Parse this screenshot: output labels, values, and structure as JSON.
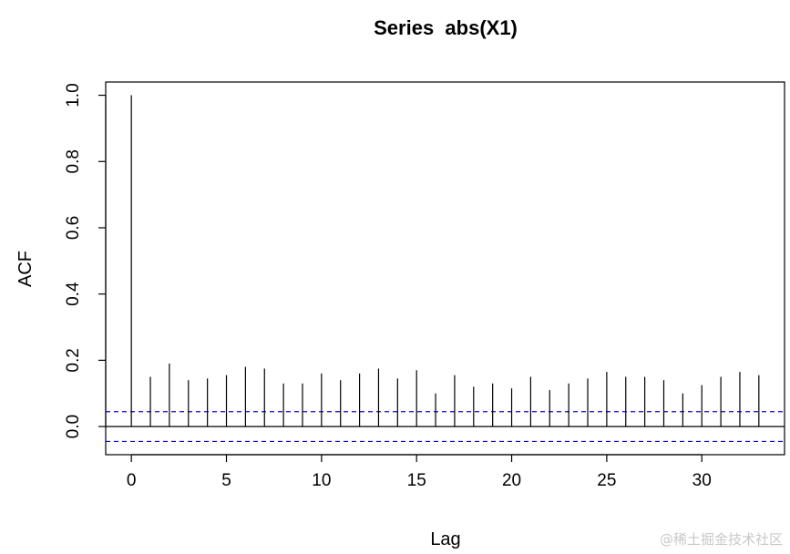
{
  "chart_data": {
    "type": "bar",
    "title": "Series  abs(X1)",
    "xlabel": "Lag",
    "ylabel": "ACF",
    "xlim": [
      -1.35,
      34.35
    ],
    "ylim": [
      -0.085,
      1.04
    ],
    "x_ticks": [
      0,
      5,
      10,
      15,
      20,
      25,
      30
    ],
    "x_tick_labels": [
      "0",
      "5",
      "10",
      "15",
      "20",
      "25",
      "30"
    ],
    "y_ticks": [
      0.0,
      0.2,
      0.4,
      0.6,
      0.8,
      1.0
    ],
    "y_tick_labels": [
      "0.0",
      "0.2",
      "0.4",
      "0.6",
      "0.8",
      "1.0"
    ],
    "lags": [
      0,
      1,
      2,
      3,
      4,
      5,
      6,
      7,
      8,
      9,
      10,
      11,
      12,
      13,
      14,
      15,
      16,
      17,
      18,
      19,
      20,
      21,
      22,
      23,
      24,
      25,
      26,
      27,
      28,
      29,
      30,
      31,
      32,
      33
    ],
    "values": [
      1.0,
      0.15,
      0.19,
      0.14,
      0.145,
      0.155,
      0.18,
      0.175,
      0.13,
      0.13,
      0.16,
      0.14,
      0.16,
      0.175,
      0.145,
      0.17,
      0.1,
      0.155,
      0.12,
      0.13,
      0.115,
      0.15,
      0.11,
      0.13,
      0.145,
      0.165,
      0.15,
      0.15,
      0.14,
      0.1,
      0.125,
      0.15,
      0.165,
      0.155
    ],
    "confidence_bound": 0.045,
    "zero_line": 0,
    "colors": {
      "bars": "#000000",
      "confidence": "#0000cc",
      "axis": "#000000"
    }
  },
  "watermark": "@稀土掘金技术社区"
}
